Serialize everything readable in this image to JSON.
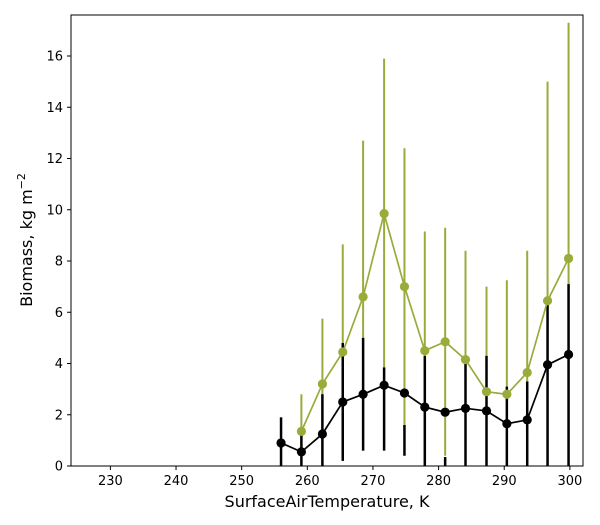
{
  "chart_data": {
    "type": "line",
    "title": "",
    "xlabel": "SurfaceAirTemperature,  K",
    "ylabel": "Biomass,  kg m",
    "ylabel_sup": "−2",
    "xlim": [
      224,
      302
    ],
    "ylim": [
      0,
      17.6
    ],
    "xticks": [
      230,
      240,
      250,
      260,
      270,
      280,
      290,
      300
    ],
    "yticks": [
      0,
      2,
      4,
      6,
      8,
      10,
      12,
      14,
      16
    ],
    "grid": false,
    "legend": "none",
    "series": [
      {
        "color": "#9aab3b",
        "points": [
          {
            "x": 259.1,
            "y": 1.35,
            "lo": 0.0,
            "hi": 2.8
          },
          {
            "x": 262.3,
            "y": 3.2,
            "lo": 0.0,
            "hi": 5.75
          },
          {
            "x": 265.4,
            "y": 4.45,
            "lo": 0.2,
            "hi": 8.65
          },
          {
            "x": 268.5,
            "y": 6.6,
            "lo": 0.6,
            "hi": 12.7
          },
          {
            "x": 271.7,
            "y": 9.85,
            "lo": 3.85,
            "hi": 15.9
          },
          {
            "x": 274.8,
            "y": 7.0,
            "lo": 1.6,
            "hi": 12.4
          },
          {
            "x": 277.9,
            "y": 4.5,
            "lo": 0.0,
            "hi": 9.15
          },
          {
            "x": 281.0,
            "y": 4.85,
            "lo": 0.4,
            "hi": 9.3
          },
          {
            "x": 284.1,
            "y": 4.15,
            "lo": 0.0,
            "hi": 8.4
          },
          {
            "x": 287.3,
            "y": 2.9,
            "lo": 0.0,
            "hi": 7.0
          },
          {
            "x": 290.4,
            "y": 2.8,
            "lo": 0.0,
            "hi": 7.25
          },
          {
            "x": 293.5,
            "y": 3.65,
            "lo": 0.0,
            "hi": 8.4
          },
          {
            "x": 296.6,
            "y": 6.45,
            "lo": 0.0,
            "hi": 15.0
          },
          {
            "x": 299.8,
            "y": 8.1,
            "lo": 0.0,
            "hi": 17.3
          }
        ]
      },
      {
        "color": "#000000",
        "points": [
          {
            "x": 256.0,
            "y": 0.9,
            "lo": 0.0,
            "hi": 1.9
          },
          {
            "x": 259.1,
            "y": 0.55,
            "lo": 0.0,
            "hi": 1.4
          },
          {
            "x": 262.3,
            "y": 1.25,
            "lo": 0.0,
            "hi": 2.8
          },
          {
            "x": 265.4,
            "y": 2.5,
            "lo": 0.2,
            "hi": 4.8
          },
          {
            "x": 268.5,
            "y": 2.8,
            "lo": 0.6,
            "hi": 5.0
          },
          {
            "x": 271.7,
            "y": 3.15,
            "lo": 0.6,
            "hi": 3.85
          },
          {
            "x": 274.8,
            "y": 2.85,
            "lo": 0.4,
            "hi": 1.6
          },
          {
            "x": 277.9,
            "y": 2.3,
            "lo": 0.0,
            "hi": 4.3
          },
          {
            "x": 281.0,
            "y": 2.1,
            "lo": 0.0,
            "hi": 0.35
          },
          {
            "x": 284.1,
            "y": 2.25,
            "lo": 0.0,
            "hi": 4.3
          },
          {
            "x": 287.3,
            "y": 2.15,
            "lo": 0.0,
            "hi": 4.3
          },
          {
            "x": 290.4,
            "y": 1.65,
            "lo": 0.0,
            "hi": 3.1
          },
          {
            "x": 293.5,
            "y": 1.8,
            "lo": 0.0,
            "hi": 3.3
          },
          {
            "x": 296.6,
            "y": 3.95,
            "lo": 0.0,
            "hi": 6.6
          },
          {
            "x": 299.8,
            "y": 4.35,
            "lo": 0.0,
            "hi": 7.1
          }
        ]
      }
    ]
  }
}
